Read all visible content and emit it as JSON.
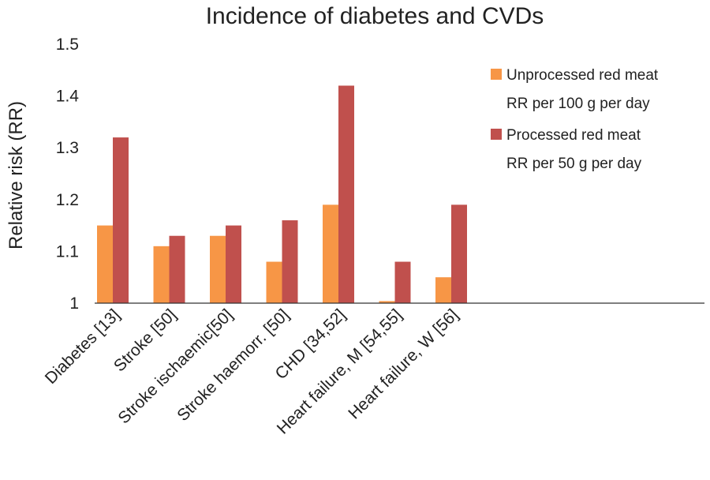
{
  "chart_data": {
    "type": "bar",
    "title": "Incidence of diabetes and CVDs",
    "xlabel": "",
    "ylabel": "Relative risk (RR)",
    "ylim": [
      1,
      1.5
    ],
    "yticks": [
      "1",
      "1.1",
      "1.2",
      "1.3",
      "1.4",
      "1.5"
    ],
    "ytick_values": [
      1,
      1.1,
      1.2,
      1.3,
      1.4,
      1.5
    ],
    "grid": false,
    "legend_position": "right",
    "categories": [
      "Diabetes [13]",
      "Stroke [50]",
      "Stroke ischaemic[50]",
      "Stroke haemorr. [50]",
      "CHD [34,52]",
      "Heart failure, M [54,55]",
      "Heart failure, W [56]"
    ],
    "series": [
      {
        "name": "Unprocessed red meat RR per 100 g per day",
        "legend_lines": [
          "Unprocessed red meat",
          "RR per 100 g per day"
        ],
        "color": "#F79646",
        "values": [
          1.15,
          1.11,
          1.13,
          1.08,
          1.19,
          1.004,
          1.05
        ]
      },
      {
        "name": "Processed red meat RR per 50 g per day",
        "legend_lines": [
          "Processed red meat",
          "RR per 50 g per day"
        ],
        "color": "#C0504D",
        "values": [
          1.32,
          1.13,
          1.15,
          1.16,
          1.42,
          1.08,
          1.19
        ]
      }
    ]
  }
}
